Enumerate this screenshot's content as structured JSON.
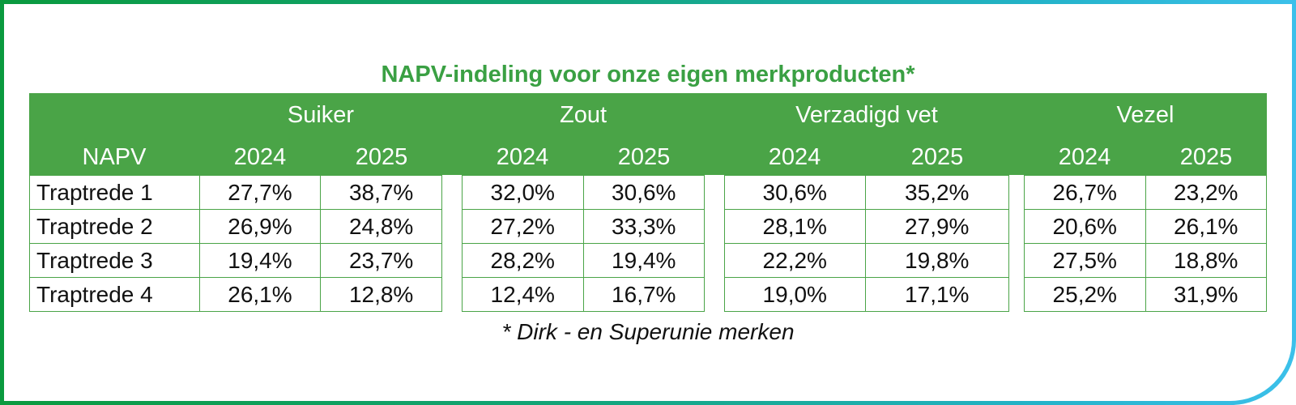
{
  "title": "NAPV-indeling voor onze eigen merkproducten*",
  "footnote": "* Dirk - en Superunie merken",
  "row_header": "NAPV",
  "years": [
    "2024",
    "2025"
  ],
  "rows": [
    "Traptrede 1",
    "Traptrede 2",
    "Traptrede 3",
    "Traptrede 4"
  ],
  "groups": [
    {
      "name": "Suiker",
      "values": [
        [
          "27,7%",
          "38,7%"
        ],
        [
          "26,9%",
          "24,8%"
        ],
        [
          "19,4%",
          "23,7%"
        ],
        [
          "26,1%",
          "12,8%"
        ]
      ]
    },
    {
      "name": "Zout",
      "values": [
        [
          "32,0%",
          "30,6%"
        ],
        [
          "27,2%",
          "33,3%"
        ],
        [
          "28,2%",
          "19,4%"
        ],
        [
          "12,4%",
          "16,7%"
        ]
      ]
    },
    {
      "name": "Verzadigd vet",
      "values": [
        [
          "30,6%",
          "35,2%"
        ],
        [
          "28,1%",
          "27,9%"
        ],
        [
          "22,2%",
          "19,8%"
        ],
        [
          "19,0%",
          "17,1%"
        ]
      ]
    },
    {
      "name": "Vezel",
      "values": [
        [
          "26,7%",
          "23,2%"
        ],
        [
          "20,6%",
          "26,1%"
        ],
        [
          "27,5%",
          "18,8%"
        ],
        [
          "25,2%",
          "31,9%"
        ]
      ]
    }
  ],
  "colors": {
    "green": "#4aa447",
    "title_green": "#3aa043",
    "border_gradient_start": "#0a9a3e",
    "border_gradient_end": "#3cc0ea"
  }
}
